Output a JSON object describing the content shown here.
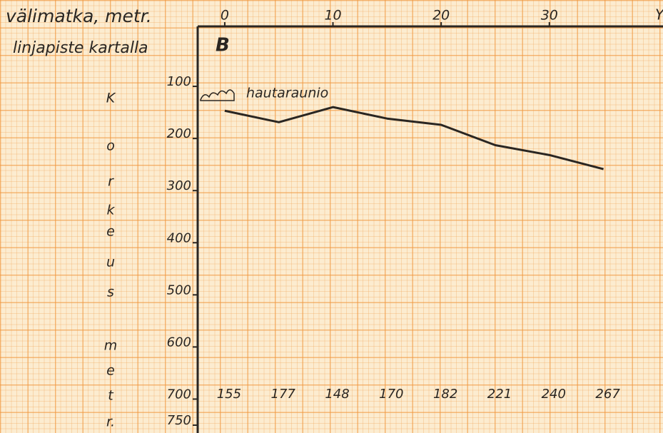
{
  "chart_data": {
    "type": "line",
    "xlabel": "välimatka, metr.",
    "point_label": "linjapiste kartalla",
    "point_name": "B",
    "ylabel": [
      "K",
      "o",
      "r",
      "k",
      "e",
      "u",
      "s",
      "m",
      "e",
      "t",
      "r."
    ],
    "annotation": "hautaraunio",
    "x_end_label": "Y",
    "x": [
      0,
      5,
      10,
      15,
      20,
      25,
      30,
      35
    ],
    "series": [
      {
        "name": "korkeus",
        "color": "#2a2622",
        "values": [
          155,
          177,
          148,
          170,
          182,
          221,
          240,
          267
        ]
      }
    ],
    "xlim": [
      -2.5,
      40.5
    ],
    "xticks": [
      0,
      10,
      20,
      30
    ],
    "ylim": [
      0,
      750
    ],
    "yticks": [
      100,
      200,
      300,
      400,
      500,
      600,
      700,
      750
    ],
    "y_inverted": true
  }
}
